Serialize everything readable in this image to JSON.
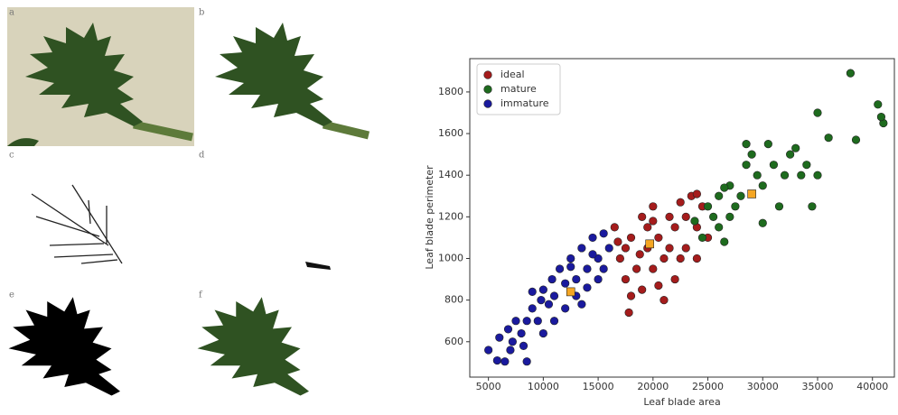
{
  "panels": [
    "a",
    "b",
    "c",
    "d",
    "e",
    "f"
  ],
  "chart_data": {
    "type": "scatter",
    "xlabel": "Leaf blade area",
    "ylabel": "Leaf blade perimeter",
    "xlim": [
      3300,
      42000
    ],
    "ylim": [
      430,
      1960
    ],
    "xticks": [
      5000,
      10000,
      15000,
      20000,
      25000,
      30000,
      35000,
      40000
    ],
    "yticks": [
      600,
      800,
      1000,
      1200,
      1400,
      1600,
      1800
    ],
    "legend": "upper left",
    "series": [
      {
        "name": "ideal",
        "color": "#a51c1c",
        "x": [
          16500,
          17000,
          17500,
          17800,
          18000,
          18500,
          19000,
          19000,
          19500,
          20000,
          20000,
          20500,
          21000,
          21000,
          21500,
          22000,
          22000,
          22500,
          23000,
          23000,
          23500,
          24000,
          24000,
          24500,
          25000,
          18000,
          20500,
          16800,
          22500,
          19500,
          17500,
          21500,
          24000,
          18800,
          20000
        ],
        "y": [
          1150,
          1000,
          900,
          740,
          1100,
          950,
          1200,
          850,
          1050,
          1250,
          950,
          1100,
          800,
          1000,
          1200,
          1150,
          900,
          1270,
          1050,
          1200,
          1300,
          1150,
          1000,
          1250,
          1100,
          820,
          870,
          1080,
          1000,
          1150,
          1050,
          1050,
          1310,
          1020,
          1180
        ]
      },
      {
        "name": "mature",
        "color": "#1e6b1e",
        "x": [
          23800,
          24500,
          25000,
          25500,
          26000,
          26000,
          26500,
          27000,
          27000,
          27500,
          28000,
          28500,
          28500,
          29000,
          29500,
          30000,
          30000,
          30500,
          31000,
          31500,
          32000,
          32500,
          33000,
          33500,
          34000,
          34500,
          35000,
          35000,
          36000,
          38000,
          38500,
          40500,
          41000,
          40800,
          26500
        ],
        "y": [
          1180,
          1100,
          1250,
          1200,
          1300,
          1150,
          1080,
          1200,
          1350,
          1250,
          1300,
          1450,
          1550,
          1500,
          1400,
          1350,
          1170,
          1550,
          1450,
          1250,
          1400,
          1500,
          1530,
          1400,
          1450,
          1250,
          1400,
          1700,
          1580,
          1890,
          1570,
          1740,
          1650,
          1680,
          1340
        ]
      },
      {
        "name": "immature",
        "color": "#1a1a9e",
        "x": [
          5000,
          5800,
          6500,
          8500,
          6000,
          6800,
          7200,
          7500,
          8000,
          8500,
          9000,
          9500,
          9800,
          10000,
          10500,
          10800,
          11000,
          11500,
          12000,
          12000,
          12500,
          13000,
          13000,
          13500,
          14000,
          14000,
          14500,
          15000,
          15000,
          15500,
          15500,
          16000,
          11000,
          9000,
          7000,
          13500,
          14500,
          12500,
          10000,
          8200
        ],
        "y": [
          560,
          510,
          505,
          505,
          620,
          660,
          600,
          700,
          640,
          700,
          760,
          700,
          800,
          850,
          780,
          900,
          820,
          950,
          880,
          760,
          1000,
          900,
          820,
          1050,
          950,
          860,
          1100,
          1000,
          900,
          1120,
          950,
          1050,
          700,
          840,
          560,
          780,
          1020,
          960,
          640,
          580
        ]
      },
      {
        "color": "#f5a623",
        "marker": "square",
        "x": [
          12500,
          19700,
          29000
        ],
        "y": [
          840,
          1070,
          1310
        ]
      }
    ]
  }
}
